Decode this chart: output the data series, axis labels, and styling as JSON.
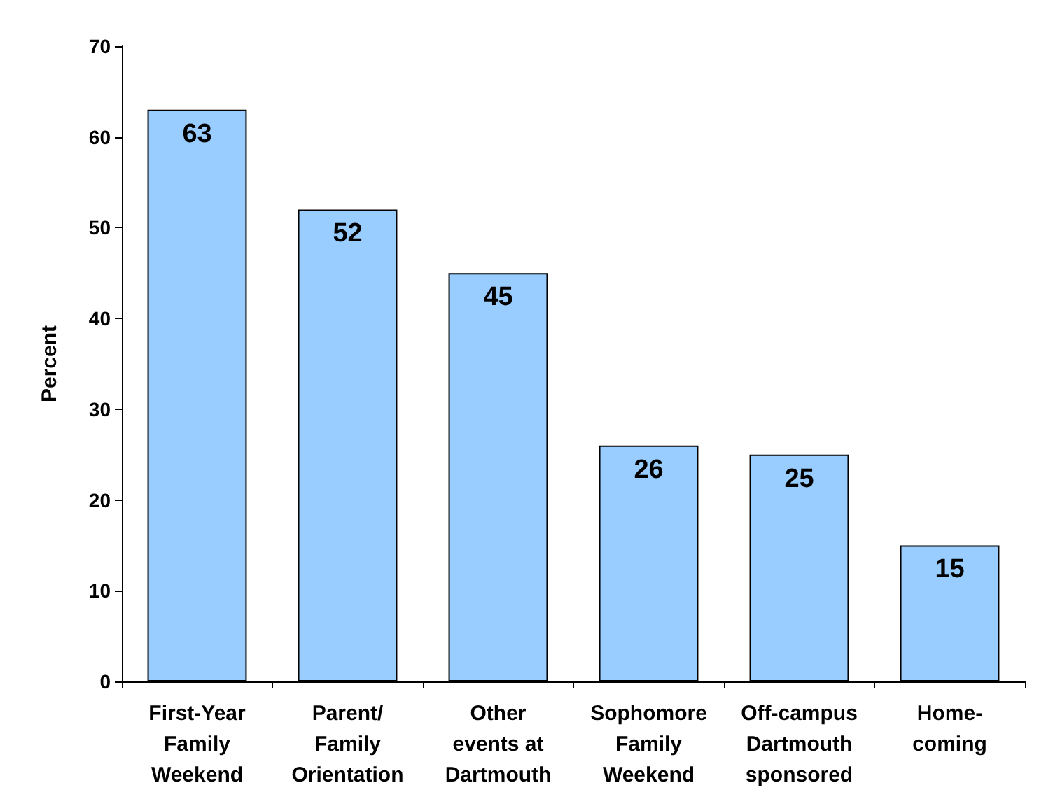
{
  "chart_data": {
    "type": "bar",
    "ylabel": "Percent",
    "categories": [
      "First-Year\nFamily\nWeekend",
      "Parent/\nFamily\nOrientation",
      "Other\nevents at\nDartmouth",
      "Sophomore\nFamily\nWeekend",
      "Off-campus\nDartmouth\nsponsored",
      "Home-\ncoming"
    ],
    "values": [
      63,
      52,
      45,
      26,
      25,
      15
    ],
    "color": "#99ccff",
    "ylim": [
      0,
      70
    ],
    "yticks": [
      0,
      10,
      20,
      30,
      40,
      50,
      60,
      70
    ],
    "grid": false,
    "data_labels": true
  }
}
